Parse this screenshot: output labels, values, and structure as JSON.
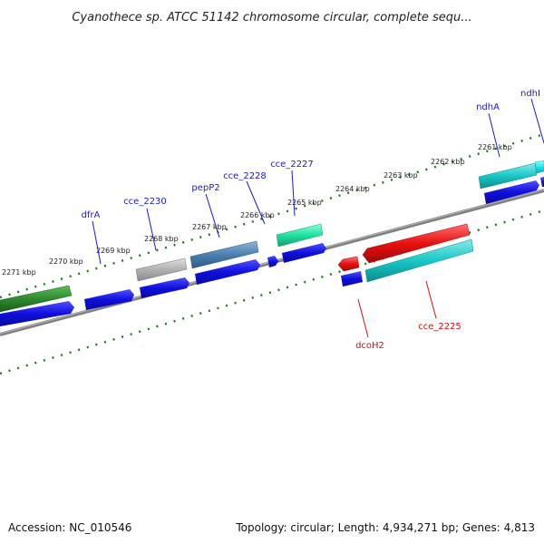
{
  "title": "Cyanothece sp. ATCC 51142 chromosome circular, complete sequ...",
  "footer": {
    "accession": "Accession: NC_010546",
    "stats": "Topology: circular; Length: 4,934,271 bp; Genes: 4,813"
  },
  "kbp_labels": [
    "2271 kbp",
    "2270 kbp",
    "2269 kbp",
    "2268 kbp",
    "2267 kbp",
    "2266 kbp",
    "2265 kbp",
    "2264 kbp",
    "2263 kbp",
    "2262 kbp",
    "2261 kbp"
  ],
  "forward_gene_labels": [
    "dfrA",
    "cce_2230",
    "pepP2",
    "cce_2228",
    "cce_2227",
    "ndhA",
    "ndhI"
  ],
  "reverse_gene_labels": [
    "dcoH2",
    "cce_2225"
  ],
  "colors": {
    "forward_label": "#1a1acc",
    "reverse_label": "#cc1111",
    "tick": "#1e7a1e",
    "backbone": "#808080",
    "cds": "#1010dd",
    "green_gene": "#2e8b2e",
    "grey_gene": "#b0b0b0",
    "steel_gene": "#4a7fb0",
    "teal_gene": "#22e0a0",
    "red_gene": "#e81010",
    "cyan_gene": "#18c8c8",
    "bright_cyan_gene": "#20e8e8"
  }
}
